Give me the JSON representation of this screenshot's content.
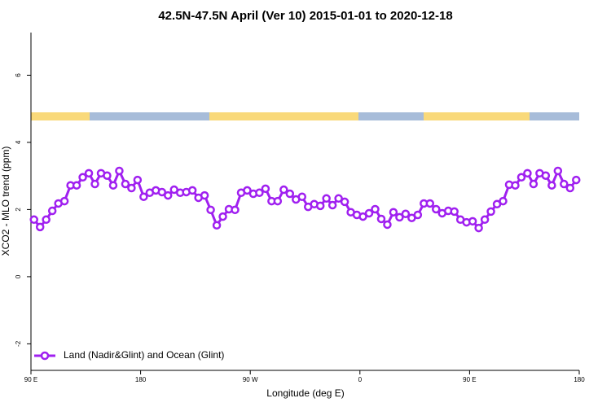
{
  "chart_data": {
    "type": "line",
    "title": "42.5N-47.5N April (Ver 10)   2015-01-01 to 2020-12-18",
    "x_label": "Longitude (deg E)",
    "y_label": "XCO2 - MLO trend (ppm)",
    "x": [
      92.5,
      97.5,
      102.5,
      107.5,
      112.5,
      117.5,
      122.5,
      127.5,
      132.5,
      137.5,
      142.5,
      147.5,
      152.5,
      157.5,
      162.5,
      167.5,
      172.5,
      177.5,
      182.5,
      187.5,
      192.5,
      197.5,
      202.5,
      207.5,
      212.5,
      217.5,
      222.5,
      227.5,
      232.5,
      237.5,
      242.5,
      247.5,
      252.5,
      257.5,
      262.5,
      267.5,
      272.5,
      277.5,
      282.5,
      287.5,
      292.5,
      297.5,
      302.5,
      307.5,
      312.5,
      317.5,
      322.5,
      327.5,
      332.5,
      337.5,
      342.5,
      347.5,
      352.5,
      357.5,
      362.5,
      367.5,
      372.5,
      377.5,
      382.5,
      387.5,
      392.5,
      397.5,
      402.5,
      407.5,
      412.5,
      417.5,
      422.5,
      427.5,
      432.5,
      437.5,
      442.5,
      447.5,
      452.5,
      457.5,
      462.5,
      467.5,
      472.5,
      477.5,
      482.5,
      487.5,
      492.5,
      497.5,
      502.5,
      507.5,
      512.5,
      517.5,
      522.5,
      527.5,
      532.5,
      537.5
    ],
    "series": [
      {
        "name": "Land (Nadir&Glint) and Ocean (Glint)",
        "color": "#a020f0",
        "values": [
          1.7,
          1.48,
          1.7,
          1.96,
          2.18,
          2.25,
          2.72,
          2.72,
          2.96,
          3.08,
          2.76,
          3.08,
          3.01,
          2.72,
          3.15,
          2.76,
          2.64,
          2.88,
          2.38,
          2.5,
          2.57,
          2.52,
          2.42,
          2.59,
          2.5,
          2.52,
          2.57,
          2.35,
          2.42,
          1.99,
          1.53,
          1.79,
          2.01,
          1.99,
          2.5,
          2.57,
          2.47,
          2.5,
          2.62,
          2.25,
          2.25,
          2.59,
          2.47,
          2.3,
          2.38,
          2.08,
          2.16,
          2.11,
          2.33,
          2.13,
          2.33,
          2.23,
          1.92,
          1.84,
          1.79,
          1.89,
          2.01,
          1.72,
          1.55,
          1.92,
          1.77,
          1.87,
          1.75,
          1.84,
          2.18,
          2.18,
          2.01,
          1.89,
          1.96,
          1.94,
          1.7,
          1.62,
          1.65,
          1.45,
          1.7,
          1.94,
          2.16,
          2.25,
          2.74,
          2.72,
          2.96,
          3.08,
          2.76,
          3.08,
          3.01,
          2.72,
          3.15,
          2.76,
          2.64,
          2.88
        ]
      }
    ],
    "xlim": [
      90,
      540
    ],
    "xticks": [
      {
        "value": 90,
        "label": "90 E"
      },
      180,
      {
        "value": 270,
        "label": "90 W"
      },
      {
        "value": 360,
        "label": "0"
      },
      {
        "value": 450,
        "label": "90 E"
      },
      {
        "value": 540,
        "label": "180"
      }
    ],
    "ylim": [
      -2.79,
      7.27
    ],
    "yticks": [
      -2,
      0,
      2,
      4,
      6
    ],
    "grid": false,
    "legend": "bottom-left"
  }
}
